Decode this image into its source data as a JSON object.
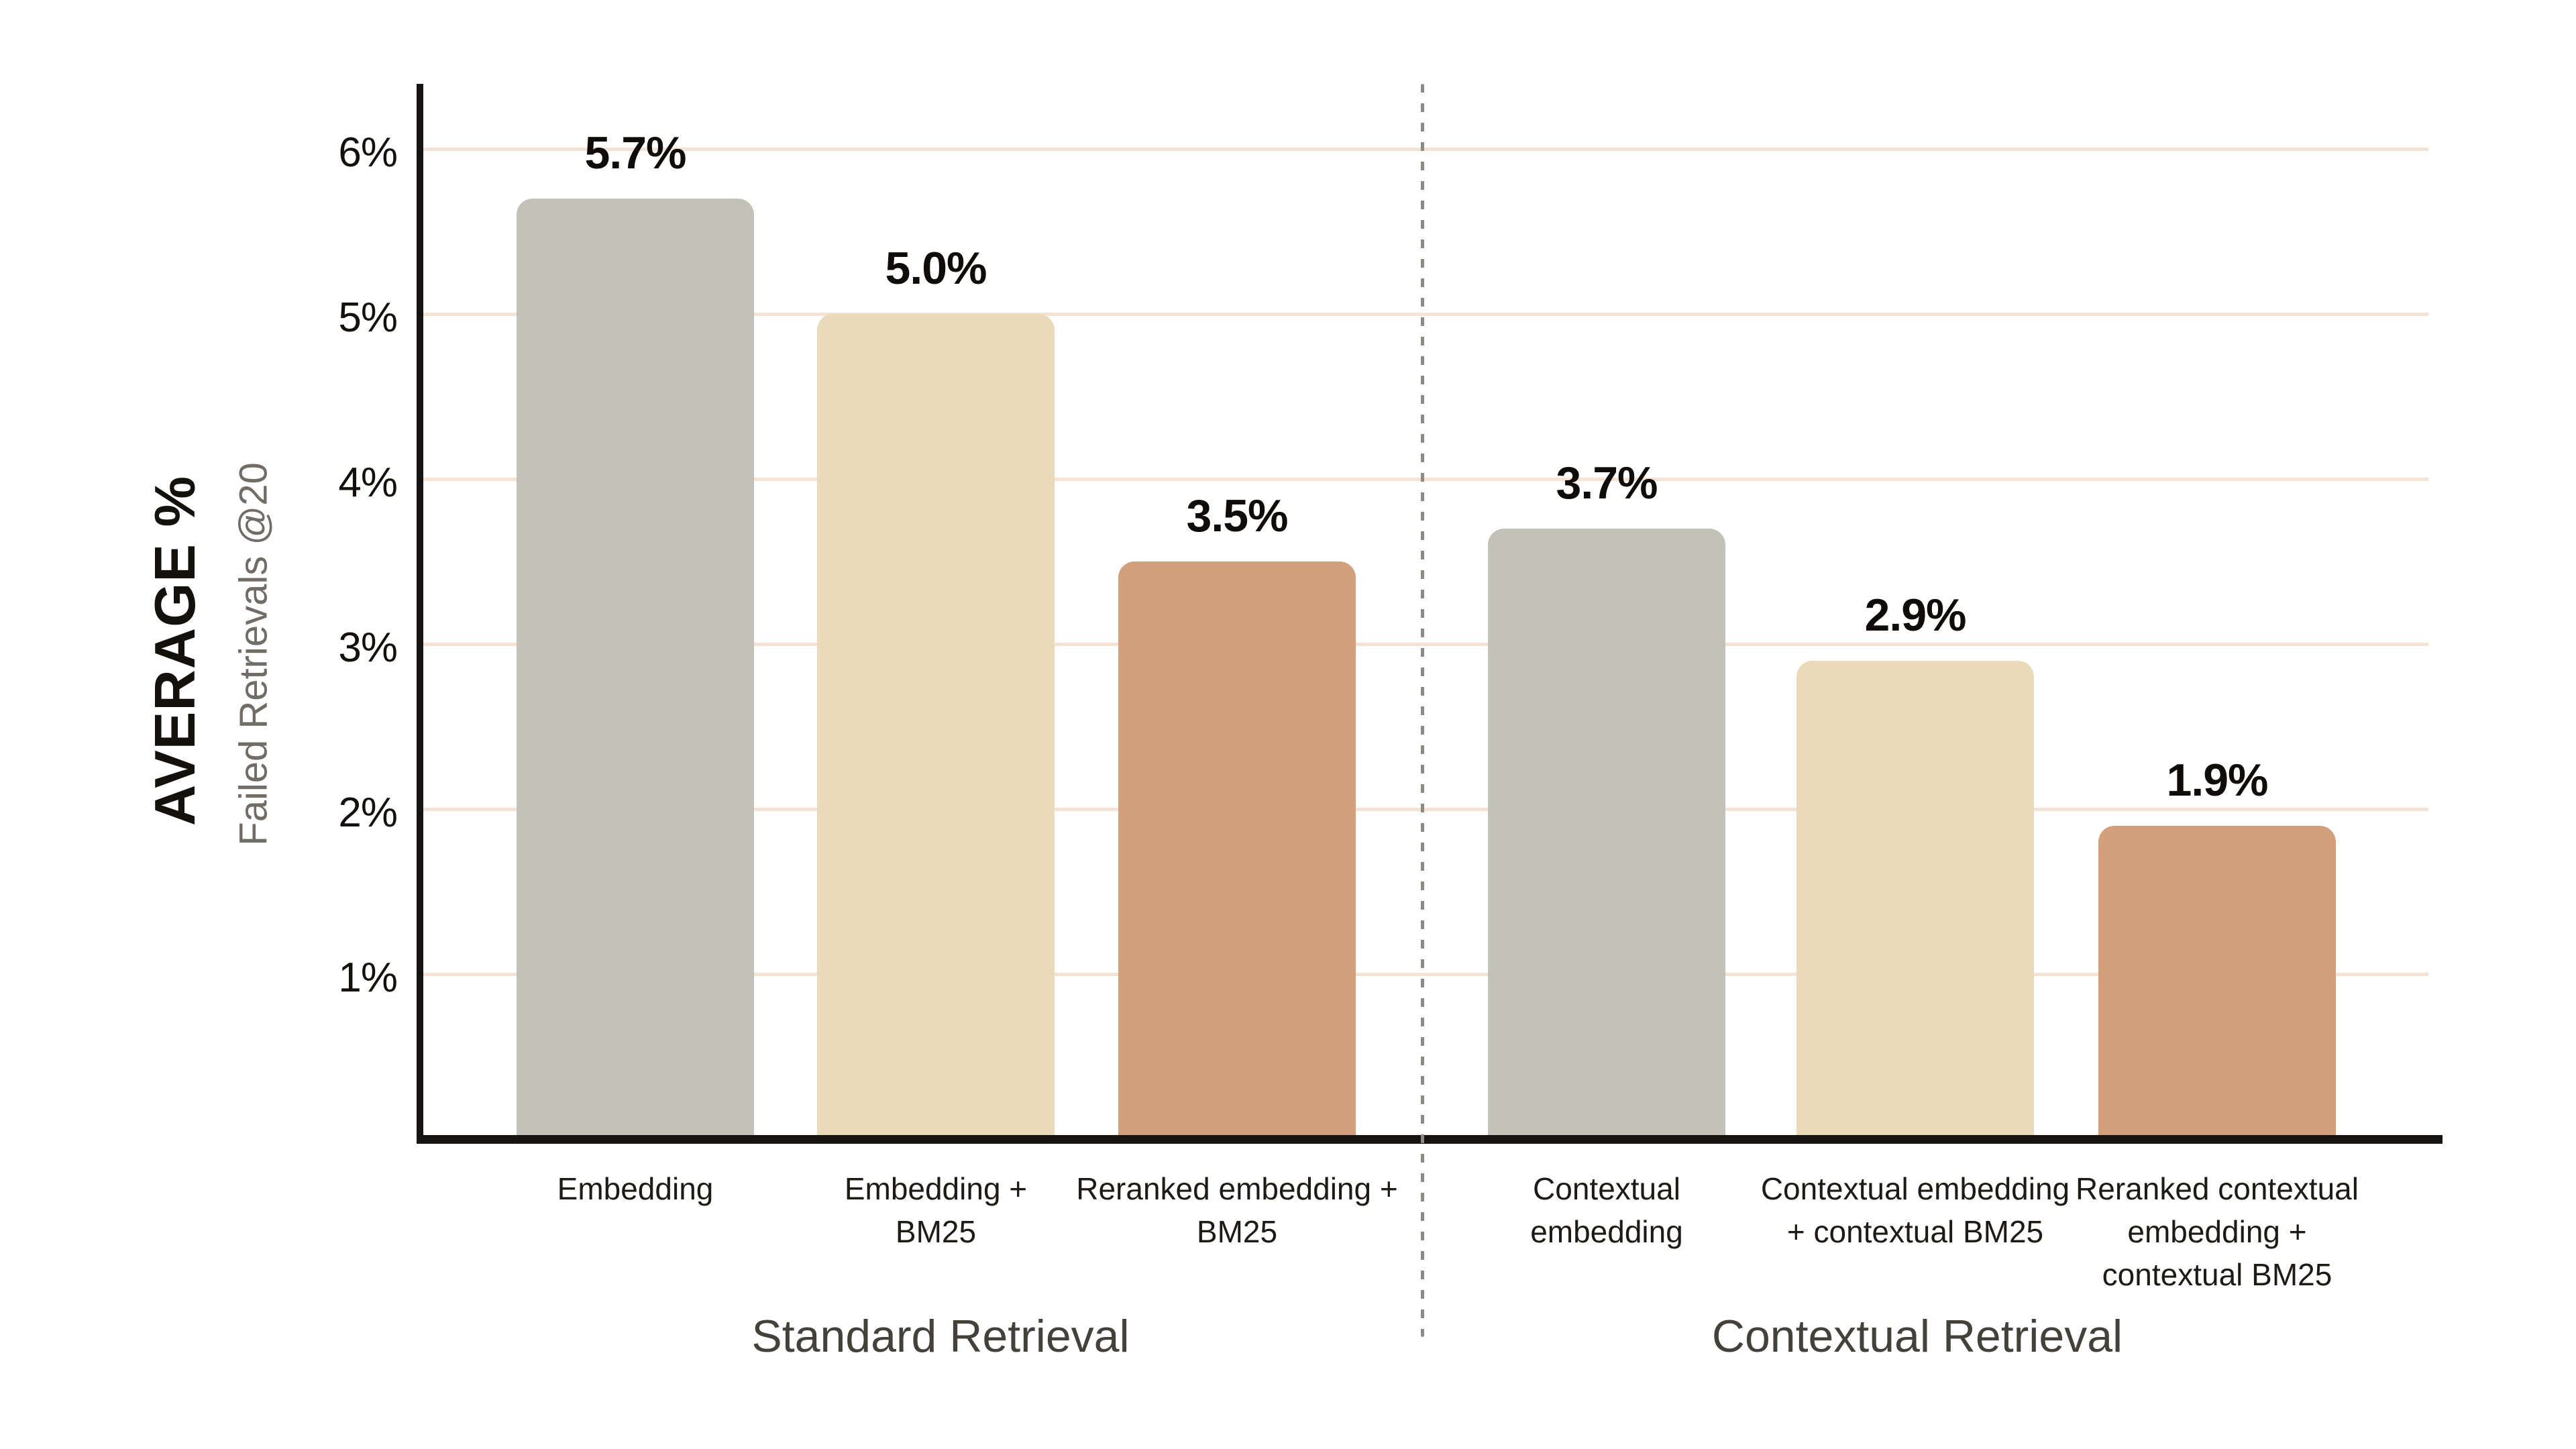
{
  "chart_data": {
    "type": "bar",
    "title": "",
    "y_axis": {
      "label_primary": "AVERAGE %",
      "label_secondary": "Failed Retrievals @20",
      "ticks": [
        "1%",
        "2%",
        "3%",
        "4%",
        "5%",
        "6%"
      ],
      "range": [
        0,
        6.4
      ],
      "unit": "percent"
    },
    "grid": {
      "horizontal": true,
      "color": "#f4e3d4"
    },
    "divider": {
      "style": "dashed",
      "color": "#8d8a86",
      "between": [
        "Standard Retrieval",
        "Contextual Retrieval"
      ]
    },
    "groups": [
      {
        "label": "Standard Retrieval"
      },
      {
        "label": "Contextual Retrieval"
      }
    ],
    "bars": [
      {
        "name": "embedding",
        "group": 0,
        "category_lines": [
          "Embedding"
        ],
        "value": 5.7,
        "display_value": "5.7%",
        "color": "#c3c2b8"
      },
      {
        "name": "embedding-bm25",
        "group": 0,
        "category_lines": [
          "Embedding +",
          "BM25"
        ],
        "value": 5.0,
        "display_value": "5.0%",
        "color": "#e9dbb9"
      },
      {
        "name": "reranked-embedding-bm25",
        "group": 0,
        "category_lines": [
          "Reranked embedding +",
          "BM25"
        ],
        "value": 3.5,
        "display_value": "3.5%",
        "color": "#d2a07c"
      },
      {
        "name": "contextual-embedding",
        "group": 1,
        "category_lines": [
          "Contextual",
          "embedding"
        ],
        "value": 3.7,
        "display_value": "3.7%",
        "color": "#c3c2b8"
      },
      {
        "name": "contextual-embedding-contextual-bm25",
        "group": 1,
        "category_lines": [
          "Contextual embedding",
          "+ contextual BM25"
        ],
        "value": 2.9,
        "display_value": "2.9%",
        "color": "#e9dbb9"
      },
      {
        "name": "reranked-contextual-embedding-contextual-bm25",
        "group": 1,
        "category_lines": [
          "Reranked contextual",
          "embedding +",
          "contextual BM25"
        ],
        "value": 1.9,
        "display_value": "1.9%",
        "color": "#d2a07c"
      }
    ],
    "colors": {
      "background": "#ffffff",
      "axis": "#171310",
      "gridline": "#f4e3d4",
      "bar_gray": "#c3c2b8",
      "bar_cream": "#e9dbb9",
      "bar_brown": "#d2a07c",
      "divider": "#8d8a86",
      "value_label": "#0f0c09",
      "category_label": "#1e1a15",
      "group_label": "#44403a",
      "tick_label": "#14100c",
      "ylabel_secondary": "#716d66"
    },
    "legend": null
  }
}
